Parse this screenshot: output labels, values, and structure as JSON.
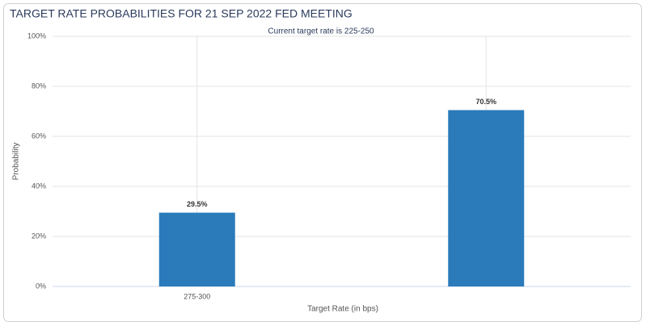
{
  "chart_data": {
    "type": "bar",
    "title": "TARGET RATE PROBABILITIES FOR 21 SEP 2022 FED MEETING",
    "subtitle": "Current target rate is 225-250",
    "x_label": "Target Rate (in bps)",
    "y_label": "Probability",
    "categories": [
      "275-300",
      null
    ],
    "values": [
      29.5,
      70.5
    ],
    "value_labels": [
      "29.5%",
      "70.5%"
    ],
    "color": "#2b7bba",
    "ylim": [
      0,
      100
    ],
    "yticks": [
      {
        "value": 0,
        "label": "0%"
      },
      {
        "value": 20,
        "label": "20%"
      },
      {
        "value": 40,
        "label": "40%"
      },
      {
        "value": 60,
        "label": "60%"
      },
      {
        "value": 80,
        "label": "80%"
      },
      {
        "value": 100,
        "label": "100%"
      }
    ],
    "grid": true
  }
}
